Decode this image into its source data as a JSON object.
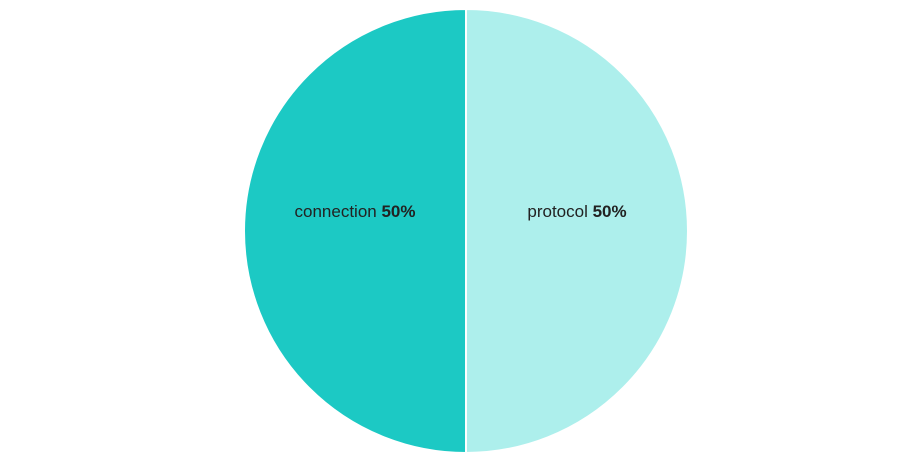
{
  "chart_data": {
    "type": "pie",
    "slices": [
      {
        "label": "protocol",
        "value": 50,
        "percent_label": "50%",
        "color": "#adefec"
      },
      {
        "label": "connection",
        "value": 50,
        "percent_label": "50%",
        "color": "#1cc9c4"
      }
    ],
    "start_angle": "top",
    "direction": "clockwise",
    "separator_color": "#ffffff",
    "legend": "none"
  }
}
